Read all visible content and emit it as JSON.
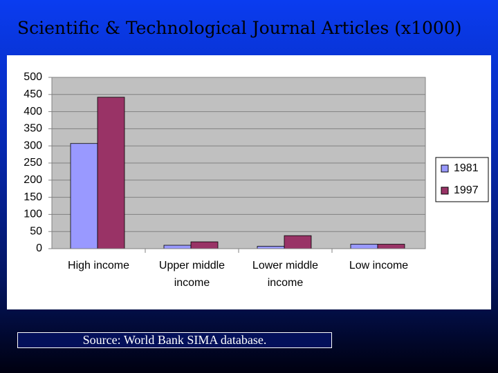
{
  "chart_data": {
    "type": "bar",
    "title": "Scientific & Technological Journal Articles (x1000)",
    "categories": [
      "High income",
      "Upper middle income",
      "Lower middle income",
      "Low income"
    ],
    "series": [
      {
        "name": "1981",
        "color": "#9999ff",
        "values": [
          307,
          10,
          7,
          13
        ]
      },
      {
        "name": "1997",
        "color": "#993366",
        "values": [
          442,
          20,
          38,
          13
        ]
      }
    ],
    "ylim": [
      0,
      500
    ],
    "yticks": [
      0,
      50,
      100,
      150,
      200,
      250,
      300,
      350,
      400,
      450,
      500
    ],
    "grid": true,
    "legend": "right",
    "source": "Source: World Bank SIMA database."
  }
}
